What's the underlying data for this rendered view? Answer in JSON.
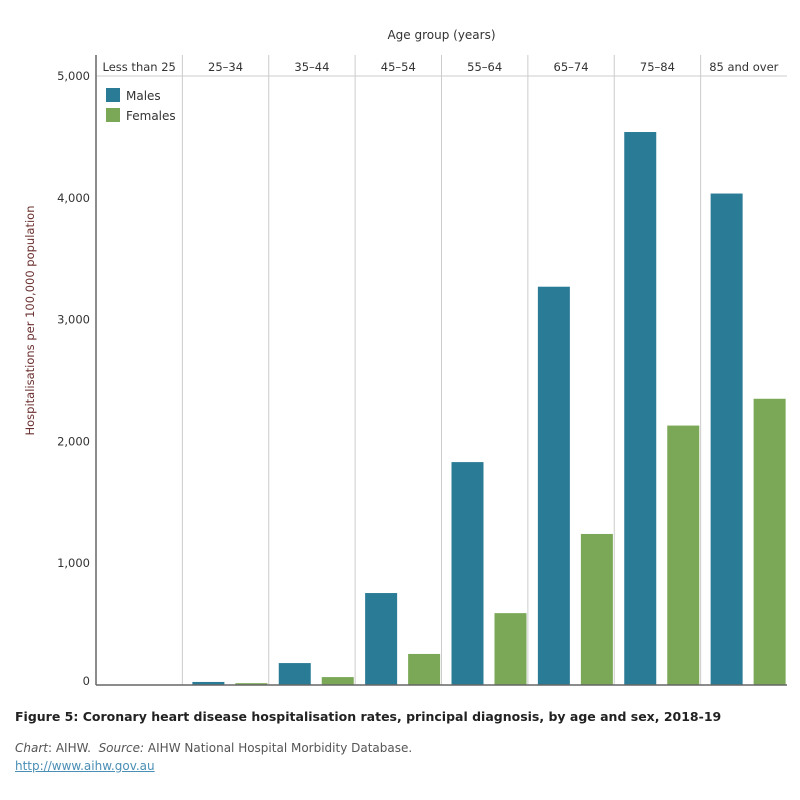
{
  "chart_data": {
    "type": "bar",
    "xlabel": "Age group (years)",
    "ylabel": "Hospitalisations per 100,000 population",
    "categories": [
      "Less than 25",
      "25–34",
      "35–44",
      "45–54",
      "55–64",
      "65–74",
      "75–84",
      "85 and over"
    ],
    "series": [
      {
        "name": "Males",
        "color": "#2a7b96",
        "values": [
          0,
          25,
          180,
          755,
          1830,
          3270,
          4540,
          4035
        ]
      },
      {
        "name": "Females",
        "color": "#7aa856",
        "values": [
          0,
          15,
          65,
          255,
          590,
          1240,
          2130,
          2350
        ]
      }
    ],
    "ylim": [
      0,
      5000
    ],
    "yticks": [
      0,
      1000,
      2000,
      3000,
      4000,
      5000
    ],
    "ytick_labels": [
      "0",
      "1,000",
      "2,000",
      "3,000",
      "4,000",
      "5,000"
    ],
    "grid": "vertical panel dividers only",
    "legend_placement": "top-left"
  },
  "caption": "Figure 5: Coronary heart disease hospitalisation rates, principal diagnosis, by age and sex, 2018-19",
  "source": {
    "chart_label": "Chart",
    "chart_value": ": AIHW.",
    "source_label": "Source:",
    "source_value": "AIHW National Hospital Morbidity Database.",
    "url": "http://www.aihw.gov.au"
  }
}
